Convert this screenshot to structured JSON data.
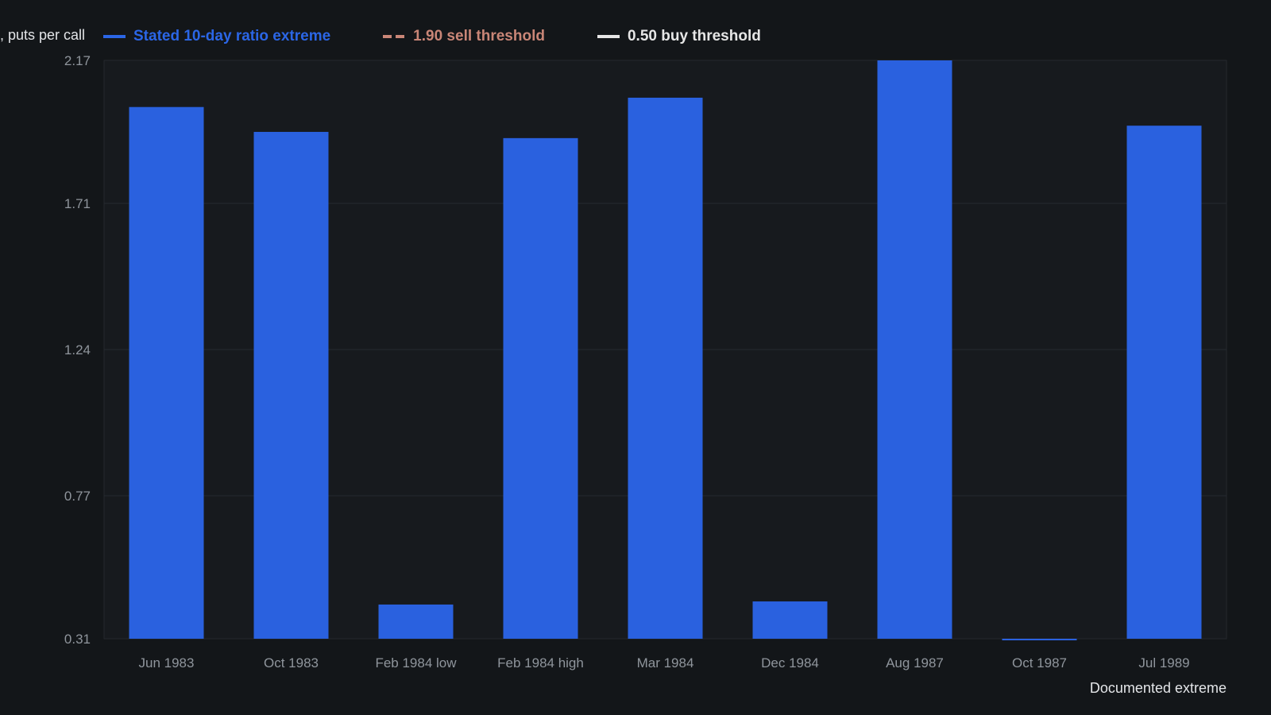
{
  "legend": {
    "items": [
      {
        "label": "Stated 10-day ratio extreme",
        "color": "#2b66e6",
        "style": "solid"
      },
      {
        "label": "1.90 sell threshold",
        "color": "#c98677",
        "style": "dashed"
      },
      {
        "label": "0.50 buy threshold",
        "color": "#e6e6e6",
        "style": "solid"
      }
    ]
  },
  "chart_data": {
    "type": "bar",
    "title": "",
    "ylabel": ", puts per call",
    "xlabel": "Documented extreme",
    "categories": [
      "Jun 1983",
      "Oct 1983",
      "Feb 1984 low",
      "Feb 1984 high",
      "Mar 1984",
      "Dec 1984",
      "Aug 1987",
      "Oct 1987",
      "Jul 1989"
    ],
    "series": [
      {
        "name": "Stated 10-day ratio extreme",
        "values": [
          2.02,
          1.94,
          0.42,
          1.92,
          2.05,
          0.43,
          2.17,
          0.31,
          1.96
        ]
      }
    ],
    "ylim": [
      0.31,
      2.17
    ],
    "yticks": [
      "0.31",
      "0.77",
      "1.24",
      "1.71",
      "2.17"
    ],
    "bar_color": "#2a61df",
    "grid": true,
    "legend_position": "top-left"
  }
}
